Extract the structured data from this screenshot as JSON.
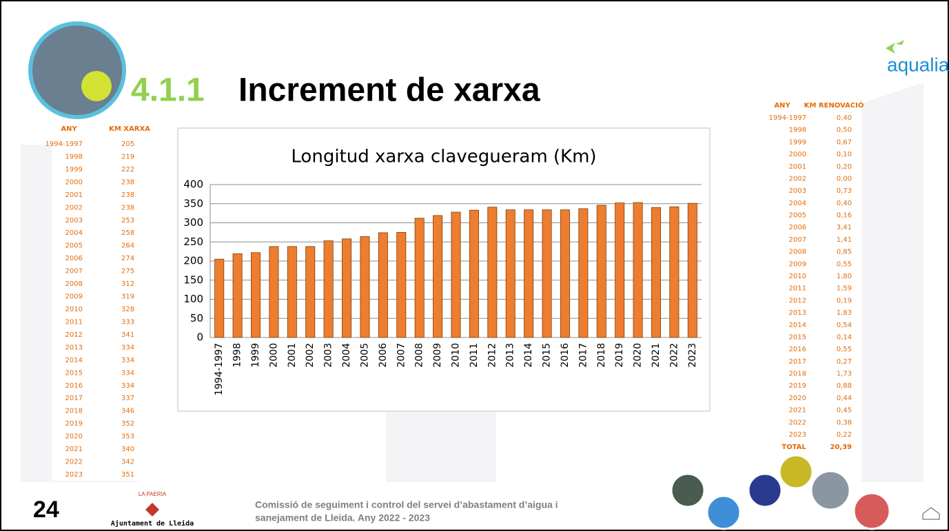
{
  "header": {
    "number": "4.1.1",
    "title": "Increment de xarxa",
    "logo": "aqualia"
  },
  "chart_data": {
    "type": "bar",
    "title": "Longitud xarxa clavegueram (Km)",
    "categories": [
      "1994-1997",
      "1998",
      "1999",
      "2000",
      "2001",
      "2002",
      "2003",
      "2004",
      "2005",
      "2006",
      "2007",
      "2008",
      "2009",
      "2010",
      "2011",
      "2012",
      "2013",
      "2014",
      "2015",
      "2016",
      "2017",
      "2018",
      "2019",
      "2020",
      "2021",
      "2022",
      "2023"
    ],
    "values": [
      205,
      219,
      222,
      238,
      238,
      238,
      253,
      258,
      264,
      274,
      275,
      312,
      319,
      328,
      333,
      341,
      334,
      334,
      334,
      334,
      337,
      346,
      352,
      353,
      340,
      342,
      351
    ],
    "color": "#ed7d31",
    "ylim": [
      0,
      400
    ],
    "yticks": [
      0,
      50,
      100,
      150,
      200,
      250,
      300,
      350,
      400
    ],
    "grid": true
  },
  "left_table": {
    "headers": [
      "ANY",
      "KM XARXA"
    ]
  },
  "right_table": {
    "headers": [
      "ANY",
      "KM RENOVACIÓ"
    ],
    "values": [
      "0,40",
      "0,50",
      "0,67",
      "0,10",
      "0,20",
      "0,00",
      "0,73",
      "0,40",
      "0,16",
      "3,41",
      "1,41",
      "0,85",
      "0,55",
      "1,80",
      "1,59",
      "0,19",
      "1,83",
      "0,54",
      "0,14",
      "0,55",
      "0,27",
      "1,73",
      "0,88",
      "0,44",
      "0,45",
      "0,38",
      "0,22"
    ],
    "total_label": "TOTAL",
    "total": "20,39"
  },
  "footer": {
    "page": "24",
    "org_top": "LA PAERIA",
    "org": "Ajuntament de Lleida",
    "text": [
      "Comissió de seguiment i control del servei d’abastament d’aigua i",
      "sanejament de Lleida. Any 2022 - 2023"
    ]
  }
}
